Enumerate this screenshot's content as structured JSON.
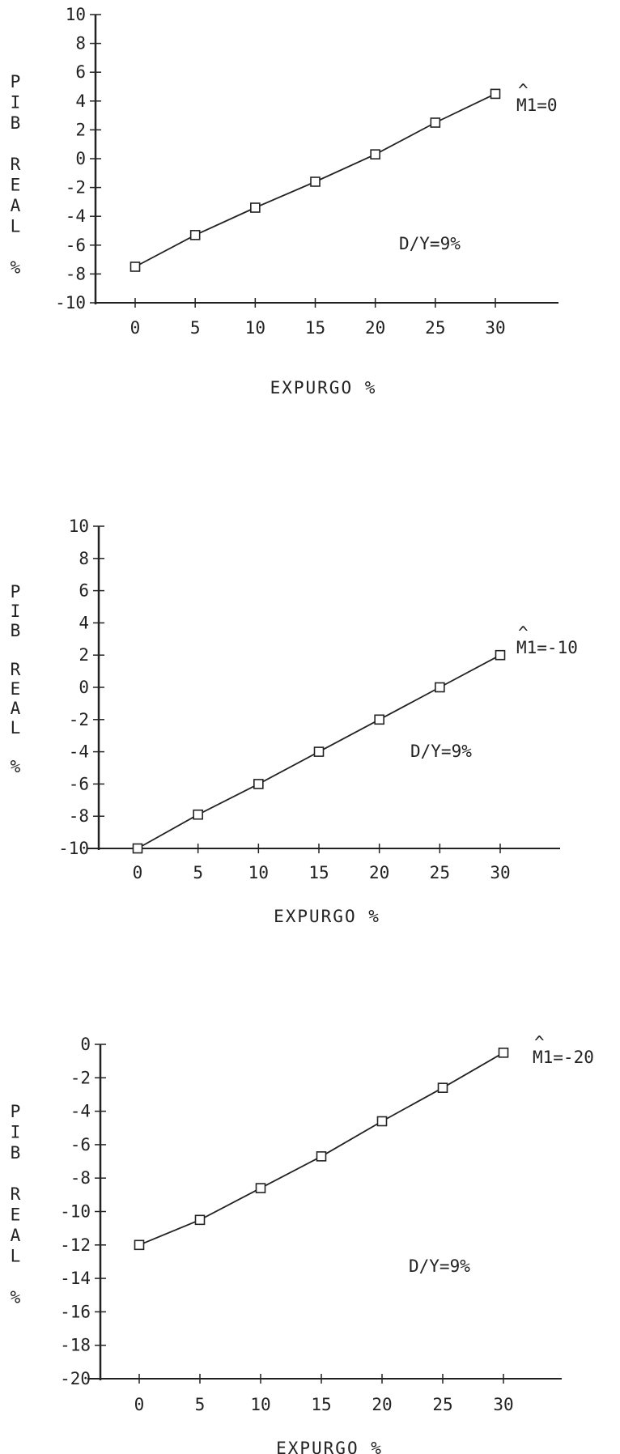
{
  "chart_data": [
    {
      "type": "line",
      "xlabel": "EXPURGO %",
      "ylabel": "PIB REAL %",
      "ylabel_chars": [
        "P",
        "I",
        "B",
        "",
        "R",
        "E",
        "A",
        "L",
        "",
        "%"
      ],
      "annotation": "D/Y=9%",
      "series": [
        {
          "name": "M1=0",
          "hat": "^",
          "x": [
            0,
            5,
            10,
            15,
            20,
            25,
            30
          ],
          "y": [
            -7.5,
            -5.3,
            -3.4,
            -1.6,
            0.3,
            2.5,
            4.5
          ]
        }
      ],
      "xticks": [
        0,
        5,
        10,
        15,
        20,
        25,
        30
      ],
      "xtick_labels": [
        "0",
        "5",
        "10",
        "15",
        "20",
        "25",
        "30"
      ],
      "yticks": [
        10,
        8,
        6,
        4,
        2,
        0,
        -2,
        -4,
        -6,
        -8,
        -10
      ],
      "ytick_labels": [
        "10",
        "8",
        "6",
        "4",
        "2",
        "0",
        "-2",
        "-4",
        "-6",
        "-8",
        "-10"
      ],
      "xlim": [
        -5,
        35
      ],
      "ylim": [
        -10,
        10
      ],
      "grid": false
    },
    {
      "type": "line",
      "xlabel": "EXPURGO %",
      "ylabel": "PIB REAL %",
      "ylabel_chars": [
        "P",
        "I",
        "B",
        "",
        "R",
        "E",
        "A",
        "L",
        "",
        "%"
      ],
      "annotation": "D/Y=9%",
      "series": [
        {
          "name": "M1=-10",
          "hat": "^",
          "x": [
            0,
            5,
            10,
            15,
            20,
            25,
            30
          ],
          "y": [
            -10,
            -7.9,
            -6,
            -4,
            -2,
            0,
            2
          ]
        }
      ],
      "xticks": [
        0,
        5,
        10,
        15,
        20,
        25,
        30
      ],
      "xtick_labels": [
        "0",
        "5",
        "10",
        "15",
        "20",
        "25",
        "30"
      ],
      "yticks": [
        10,
        8,
        6,
        4,
        2,
        0,
        -2,
        -4,
        -6,
        -8,
        -10
      ],
      "ytick_labels": [
        "10",
        "8",
        "6",
        "4",
        "2",
        "0",
        "-2",
        "-4",
        "-6",
        "-8",
        "-10"
      ],
      "xlim": [
        -5,
        35
      ],
      "ylim": [
        -10,
        10
      ],
      "grid": false
    },
    {
      "type": "line",
      "xlabel": "EXPURGO %",
      "ylabel": "PIB REAL %",
      "ylabel_chars": [
        "P",
        "I",
        "B",
        "",
        "R",
        "E",
        "A",
        "L",
        "",
        "%"
      ],
      "annotation": "D/Y=9%",
      "series": [
        {
          "name": "M1=-20",
          "hat": "^",
          "x": [
            0,
            5,
            10,
            15,
            20,
            25,
            30
          ],
          "y": [
            -12,
            -10.5,
            -8.6,
            -6.7,
            -4.6,
            -2.6,
            -0.5
          ]
        }
      ],
      "xticks": [
        0,
        5,
        10,
        15,
        20,
        25,
        30
      ],
      "xtick_labels": [
        "0",
        "5",
        "10",
        "15",
        "20",
        "25",
        "30"
      ],
      "yticks": [
        0,
        -2,
        -4,
        -6,
        -8,
        -10,
        -12,
        -14,
        -16,
        -18,
        -20
      ],
      "ytick_labels": [
        "0",
        "-2",
        "-4",
        "-6",
        "-8",
        "-10",
        "-12",
        "-14",
        "-16",
        "-18",
        "-20"
      ],
      "xlim": [
        -5,
        35
      ],
      "ylim": [
        -20,
        0
      ],
      "grid": false
    }
  ]
}
